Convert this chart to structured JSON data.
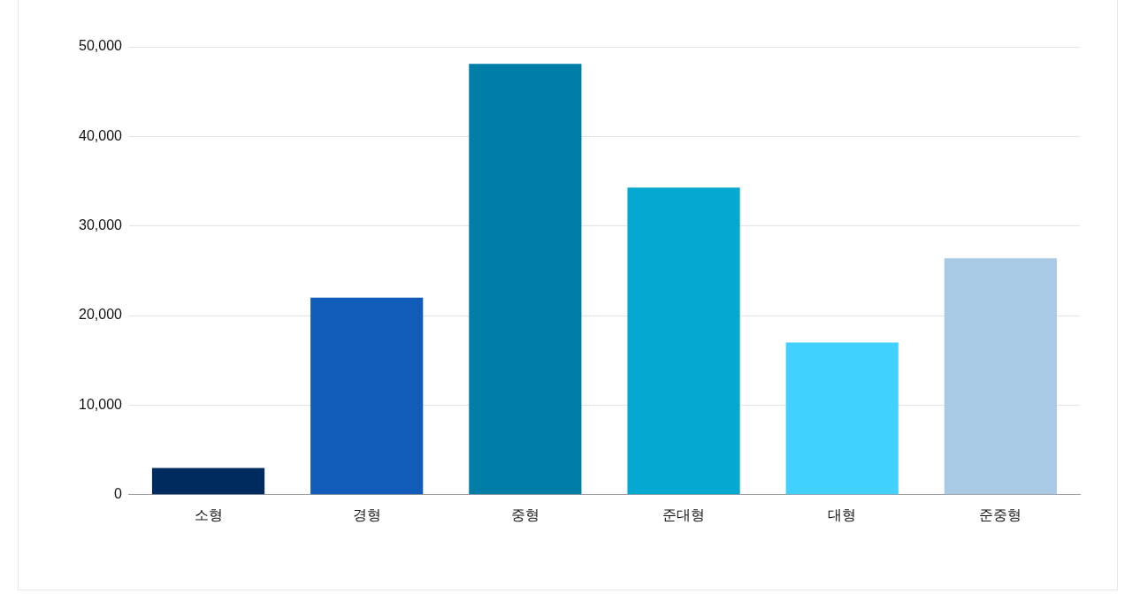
{
  "chart_data": {
    "type": "bar",
    "categories": [
      "소형",
      "경형",
      "중형",
      "준대형",
      "대형",
      "준중형"
    ],
    "values": [
      3000,
      22000,
      48100,
      34300,
      17000,
      26400
    ],
    "colors": [
      "#002b5e",
      "#115cb8",
      "#007ea8",
      "#03a9d1",
      "#42d1fe",
      "#a8cae4"
    ],
    "ylim": [
      0,
      50000
    ],
    "yticks": [
      0,
      {
        "value": 10000,
        "label": "10,000"
      },
      {
        "value": 20000,
        "label": "20,000"
      },
      {
        "value": 30000,
        "label": "30,000"
      },
      {
        "value": 40000,
        "label": "40,000"
      },
      {
        "value": 50000,
        "label": "50,000"
      }
    ],
    "grid": "y",
    "legend": false
  }
}
